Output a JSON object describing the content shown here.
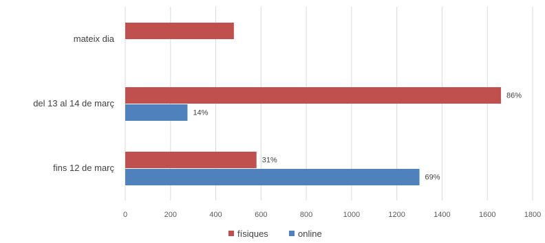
{
  "chart_data": {
    "type": "bar",
    "orientation": "horizontal",
    "title": "",
    "xlabel": "",
    "ylabel": "",
    "categories": [
      "mateix dia",
      "del 13 al 14 de març",
      "fins 12 de març"
    ],
    "series": [
      {
        "name": "físiques",
        "color": "#c0504d",
        "values": [
          480,
          1660,
          580
        ],
        "data_labels": [
          "",
          "86%",
          "31%"
        ]
      },
      {
        "name": "online",
        "color": "#4f81bd",
        "values": [
          0,
          275,
          1300
        ],
        "data_labels": [
          "",
          "14%",
          "69%"
        ]
      }
    ],
    "xlim": [
      0,
      1800
    ],
    "x_ticks": [
      0,
      200,
      400,
      600,
      800,
      1000,
      1200,
      1400,
      1600,
      1800
    ],
    "x_tick_labels": [
      "0",
      "200",
      "400",
      "600",
      "800",
      "1000",
      "1200",
      "1400",
      "1600",
      "1800"
    ],
    "grid": true,
    "legend_position": "bottom"
  }
}
